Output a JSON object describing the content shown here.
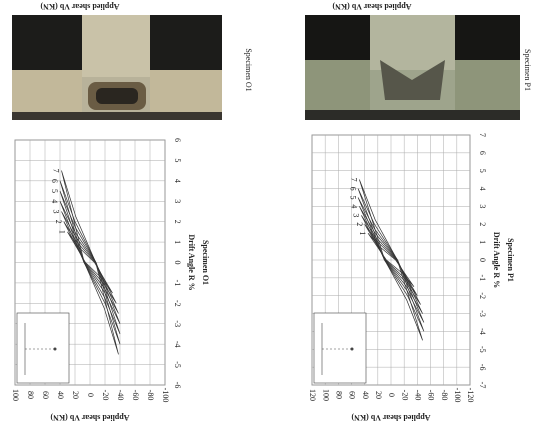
{
  "page": {
    "captions": [
      "Applied shear Vb (KN)",
      "Applied shear Vb (KN)"
    ]
  },
  "chart_data": [
    {
      "type": "line",
      "title": "Specimen O1",
      "x_label": "Drift Angle R %",
      "y_label": "Applied shear Vb (KN)",
      "xlim": [
        -6,
        6
      ],
      "xticks": [
        -6,
        -5,
        -4,
        -3,
        -2,
        -1,
        0,
        1,
        2,
        3,
        4,
        5,
        6
      ],
      "ylim": [
        -100,
        100
      ],
      "yticks": [
        -100,
        -80,
        -60,
        -40,
        -20,
        0,
        20,
        40,
        60,
        80,
        100
      ],
      "grid": true,
      "series": [
        {
          "name": "1",
          "color": "#333333",
          "x": [
            1.5,
            0,
            -0.75,
            -1.5,
            0,
            0.75,
            1.5
          ],
          "values": [
            30,
            6,
            -15,
            -30,
            -6,
            15,
            30
          ]
        },
        {
          "name": "2",
          "color": "#333333",
          "x": [
            2,
            0,
            -1,
            -2,
            0,
            1,
            2
          ],
          "values": [
            35,
            7,
            -17.5,
            -35,
            -7,
            17.5,
            35
          ]
        },
        {
          "name": "3",
          "color": "#333333",
          "x": [
            2.5,
            0,
            -1.25,
            -2.5,
            0,
            1.25,
            2.5
          ],
          "values": [
            38,
            7.6,
            -19,
            -38,
            -7.6,
            19,
            38
          ]
        },
        {
          "name": "4",
          "color": "#333333",
          "x": [
            3,
            0,
            -1.5,
            -3,
            0,
            1.5,
            3
          ],
          "values": [
            40,
            8,
            -20,
            -40,
            -8,
            20,
            40
          ]
        },
        {
          "name": "5",
          "color": "#333333",
          "x": [
            3.5,
            0,
            -1.75,
            -3.5,
            0,
            1.75,
            3.5
          ],
          "values": [
            40,
            8,
            -20,
            -40,
            -8,
            20,
            40
          ]
        },
        {
          "name": "6",
          "color": "#333333",
          "x": [
            4,
            0,
            -2,
            -4,
            0,
            2,
            4
          ],
          "values": [
            40,
            8,
            -20,
            -40,
            -8,
            20,
            40
          ]
        },
        {
          "name": "7",
          "color": "#333333",
          "x": [
            4.5,
            0,
            -2.25,
            -4.5,
            0,
            2.25,
            4.5
          ],
          "values": [
            38,
            7.6,
            -19,
            -38,
            -7.6,
            19,
            38
          ]
        }
      ]
    },
    {
      "type": "line",
      "title": "Specimen P1",
      "x_label": "Drift Angle R %",
      "y_label": "Applied shear Vb (KN)",
      "xlim": [
        -7,
        7
      ],
      "xticks": [
        -7,
        -6,
        -5,
        -4,
        -3,
        -2,
        -1,
        0,
        1,
        2,
        3,
        4,
        5,
        6,
        7
      ],
      "ylim": [
        -120,
        120
      ],
      "yticks": [
        -120,
        -100,
        -80,
        -60,
        -40,
        -20,
        0,
        20,
        40,
        60,
        80,
        100,
        120
      ],
      "grid": true,
      "series": [
        {
          "name": "1",
          "color": "#333333",
          "x": [
            1.5,
            0,
            -0.75,
            -1.5,
            0,
            0.75,
            1.5
          ],
          "values": [
            35,
            7,
            -17.5,
            -35,
            -7,
            17.5,
            35
          ]
        },
        {
          "name": "2",
          "color": "#333333",
          "x": [
            2,
            0,
            -1,
            -2,
            0,
            1,
            2
          ],
          "values": [
            40,
            8,
            -20,
            -40,
            -8,
            20,
            40
          ]
        },
        {
          "name": "3",
          "color": "#333333",
          "x": [
            2.5,
            0,
            -1.25,
            -2.5,
            0,
            1.25,
            2.5
          ],
          "values": [
            45,
            9,
            -22.5,
            -45,
            -9,
            22.5,
            45
          ]
        },
        {
          "name": "4",
          "color": "#333333",
          "x": [
            3,
            0,
            -1.5,
            -3,
            0,
            1.5,
            3
          ],
          "values": [
            48,
            9.6,
            -24,
            -48,
            -9.6,
            24,
            48
          ]
        },
        {
          "name": "5",
          "color": "#333333",
          "x": [
            3.5,
            0,
            -1.75,
            -3.5,
            0,
            1.75,
            3.5
          ],
          "values": [
            50,
            10,
            -25,
            -50,
            -10,
            25,
            50
          ]
        },
        {
          "name": "6",
          "color": "#333333",
          "x": [
            4,
            0,
            -2,
            -4,
            0,
            2,
            4
          ],
          "values": [
            50,
            10,
            -25,
            -50,
            -10,
            25,
            50
          ]
        },
        {
          "name": "7",
          "color": "#333333",
          "x": [
            4.5,
            0,
            -2.25,
            -4.5,
            0,
            2.25,
            4.5
          ],
          "values": [
            48,
            9.6,
            -24,
            -48,
            -9.6,
            24,
            48
          ]
        }
      ]
    }
  ]
}
